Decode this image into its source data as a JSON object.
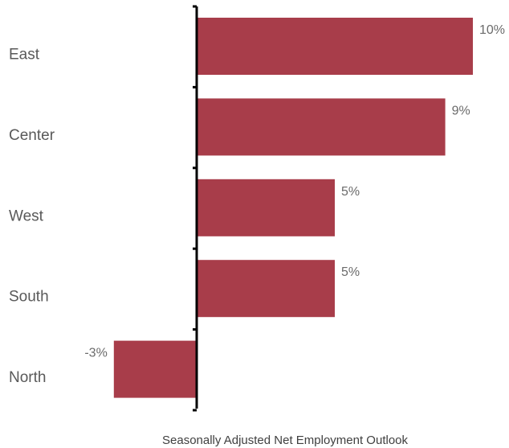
{
  "chart_data": {
    "type": "bar",
    "orientation": "horizontal",
    "categories": [
      "East",
      "Center",
      "West",
      "South",
      "North"
    ],
    "values": [
      10,
      9,
      5,
      5,
      -3
    ],
    "data_labels": [
      "10%",
      "9%",
      "5%",
      "5%",
      "-3%"
    ],
    "xlabel": "Seasonally Adjusted Net Employment Outlook",
    "ylabel": "",
    "unit": "%",
    "grid": false,
    "legend": "none",
    "bar_color": "#a83d4a",
    "axis_color": "#000000"
  }
}
